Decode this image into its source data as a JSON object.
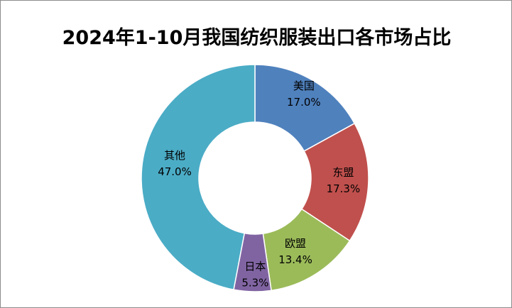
{
  "chart_data": {
    "type": "pie",
    "variant": "donut",
    "title": "2024年1-10月我国纺织服装出口各市场占比",
    "slices": [
      {
        "name": "美国",
        "value": 17.0,
        "label": "17.0%",
        "color": "#4F81BD"
      },
      {
        "name": "东盟",
        "value": 17.3,
        "label": "17.3%",
        "color": "#C0504D"
      },
      {
        "name": "欧盟",
        "value": 13.4,
        "label": "13.4%",
        "color": "#9BBB59"
      },
      {
        "name": "日本",
        "value": 5.3,
        "label": "5.3%",
        "color": "#8064A2"
      },
      {
        "name": "其他",
        "value": 47.0,
        "label": "47.0%",
        "color": "#4BACC6"
      }
    ],
    "start_angle_deg": 0,
    "direction": "clockwise",
    "legend": "none"
  }
}
